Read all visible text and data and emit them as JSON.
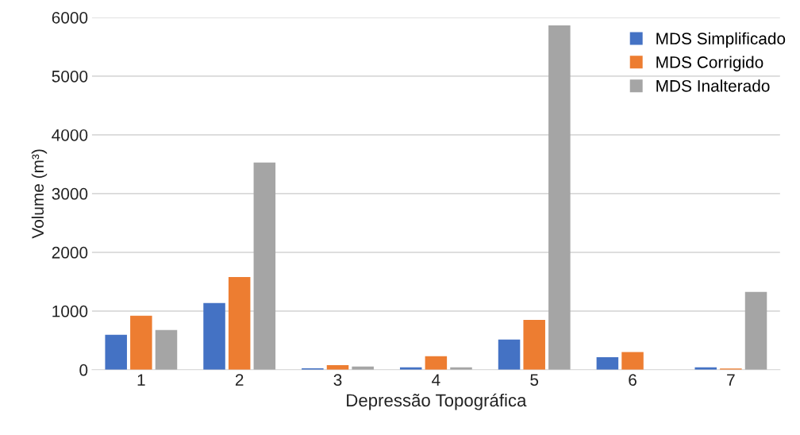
{
  "chart_data": {
    "type": "bar",
    "xlabel": "Depressão Topográfica",
    "ylabel": "Volume (m³)",
    "categories": [
      "1",
      "2",
      "3",
      "4",
      "5",
      "6",
      "7"
    ],
    "series": [
      {
        "name": "MDS Simplificado",
        "color": "#4472c4",
        "values": [
          595,
          1135,
          25,
          40,
          515,
          215,
          40
        ]
      },
      {
        "name": "MDS Corrigido",
        "color": "#ed7d31",
        "values": [
          920,
          1580,
          80,
          230,
          850,
          300,
          20
        ]
      },
      {
        "name": "MDS Inalterado",
        "color": "#a5a5a5",
        "values": [
          675,
          3530,
          55,
          40,
          5865,
          0,
          1325
        ]
      }
    ],
    "ylim": [
      0,
      6000
    ],
    "yticks": [
      0,
      1000,
      2000,
      3000,
      4000,
      5000,
      6000
    ],
    "grid": "y",
    "legend": "top right"
  }
}
